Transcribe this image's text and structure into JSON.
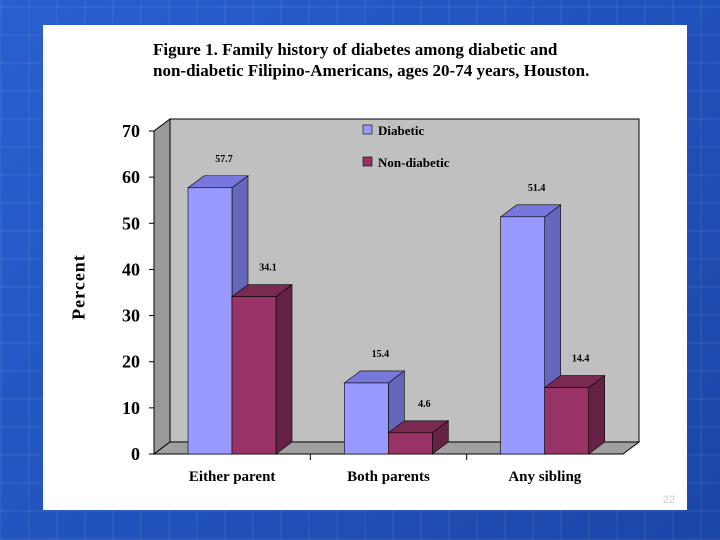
{
  "slide": {
    "title_line1": "Figure 1. Family history of diabetes among diabetic and",
    "title_line2": "non-diabetic Filipino-Americans, ages 20-74 years, Houston.",
    "page_number": "22"
  },
  "colors": {
    "background": "#1f4fb8",
    "diabetic_front": "#9999ff",
    "diabetic_side": "#6666bb",
    "diabetic_top": "#7777dd",
    "nondiabetic_front": "#993366",
    "nondiabetic_side": "#662244",
    "nondiabetic_top": "#7a2a50",
    "wall": "#c0c0c0",
    "floor": "#a0a0a0"
  },
  "chart_data": {
    "type": "bar",
    "style": "3d-clustered",
    "title": "Figure 1. Family history of diabetes among diabetic and non-diabetic Filipino-Americans, ages 20-74 years, Houston.",
    "ylabel": "Percent",
    "xlabel": "",
    "ylim": [
      0,
      70
    ],
    "yticks": [
      "0",
      "10",
      "20",
      "30",
      "40",
      "50",
      "60",
      "70"
    ],
    "categories": [
      "Either parent",
      "Both parents",
      "Any sibling"
    ],
    "series": [
      {
        "name": "Diabetic",
        "values": [
          57.7,
          15.4,
          51.4
        ],
        "labels": [
          "57.7",
          "15.4",
          "51.4"
        ]
      },
      {
        "name": "Non-diabetic",
        "values": [
          34.1,
          4.6,
          14.4
        ],
        "labels": [
          "34.1",
          "4.6",
          "14.4"
        ]
      }
    ],
    "legend_position": "top-center",
    "grid": false
  }
}
